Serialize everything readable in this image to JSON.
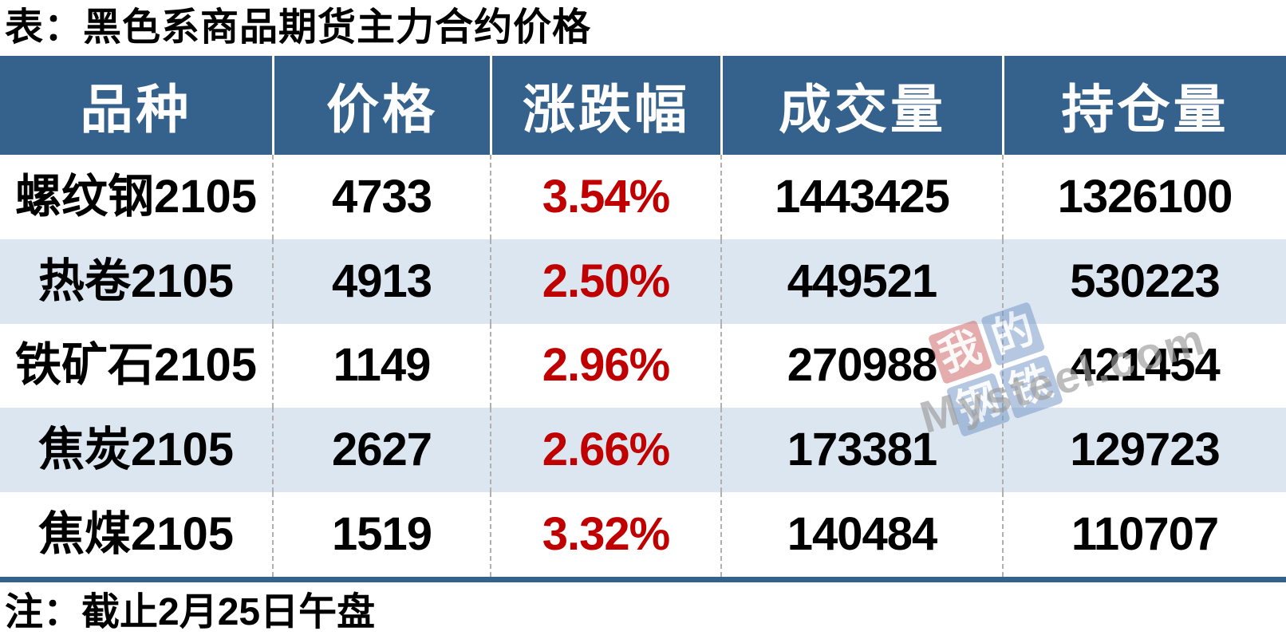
{
  "page": {
    "title": "表：黑色系商品期货主力合约价格",
    "note": "注：截止2月25日午盘"
  },
  "table": {
    "columns": [
      {
        "key": "variety",
        "label": "品种"
      },
      {
        "key": "price",
        "label": "价格"
      },
      {
        "key": "change",
        "label": "涨跌幅"
      },
      {
        "key": "volume",
        "label": "成交量"
      },
      {
        "key": "open_interest",
        "label": "持仓量"
      }
    ],
    "rows": [
      {
        "variety": "螺纹钢2105",
        "price": "4733",
        "change": "3.54%",
        "volume": "1443425",
        "open_interest": "1326100"
      },
      {
        "variety": "热卷2105",
        "price": "4913",
        "change": "2.50%",
        "volume": "449521",
        "open_interest": "530223"
      },
      {
        "variety": "铁矿石2105",
        "price": "1149",
        "change": "2.96%",
        "volume": "270988",
        "open_interest": "421454"
      },
      {
        "variety": "焦炭2105",
        "price": "2627",
        "change": "2.66%",
        "volume": "173381",
        "open_interest": "129723"
      },
      {
        "variety": "焦煤2105",
        "price": "1519",
        "change": "3.32%",
        "volume": "140484",
        "open_interest": "110707"
      }
    ]
  },
  "watermark": {
    "tiles": [
      "我",
      "的",
      "钢",
      "铁"
    ],
    "text": "Mysteel.com"
  },
  "colors": {
    "header_blue": "#35618d",
    "row_alt": "#dce6f1",
    "change_red": "#c00000",
    "wm_red": "#cf6a6a",
    "wm_blue": "#6f92c4",
    "wm_gray": "#9b9b9b",
    "dash_gray": "#b0b0b0"
  }
}
